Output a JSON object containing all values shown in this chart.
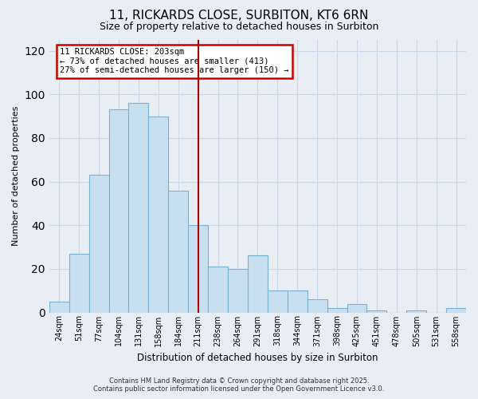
{
  "title": "11, RICKARDS CLOSE, SURBITON, KT6 6RN",
  "subtitle": "Size of property relative to detached houses in Surbiton",
  "xlabel": "Distribution of detached houses by size in Surbiton",
  "ylabel": "Number of detached properties",
  "categories": [
    "24sqm",
    "51sqm",
    "77sqm",
    "104sqm",
    "131sqm",
    "158sqm",
    "184sqm",
    "211sqm",
    "238sqm",
    "264sqm",
    "291sqm",
    "318sqm",
    "344sqm",
    "371sqm",
    "398sqm",
    "425sqm",
    "451sqm",
    "478sqm",
    "505sqm",
    "531sqm",
    "558sqm"
  ],
  "values": [
    5,
    27,
    63,
    93,
    96,
    90,
    56,
    40,
    21,
    20,
    26,
    10,
    10,
    6,
    2,
    4,
    1,
    0,
    1,
    0,
    2
  ],
  "bar_color": "#c8dff0",
  "bar_edge_color": "#7ab0d4",
  "vline_x_index": 7,
  "vline_color": "#aa0000",
  "annotation_line1": "11 RICKARDS CLOSE: 203sqm",
  "annotation_line2": "← 73% of detached houses are smaller (413)",
  "annotation_line3": "27% of semi-detached houses are larger (150) →",
  "annotation_box_edge": "#cc0000",
  "annotation_box_bg": "#ffffff",
  "ylim": [
    0,
    125
  ],
  "yticks": [
    0,
    20,
    40,
    60,
    80,
    100,
    120
  ],
  "grid_color": "#c8d8e8",
  "background_color": "#e8eef4",
  "footer_line1": "Contains HM Land Registry data © Crown copyright and database right 2025.",
  "footer_line2": "Contains public sector information licensed under the Open Government Licence v3.0."
}
